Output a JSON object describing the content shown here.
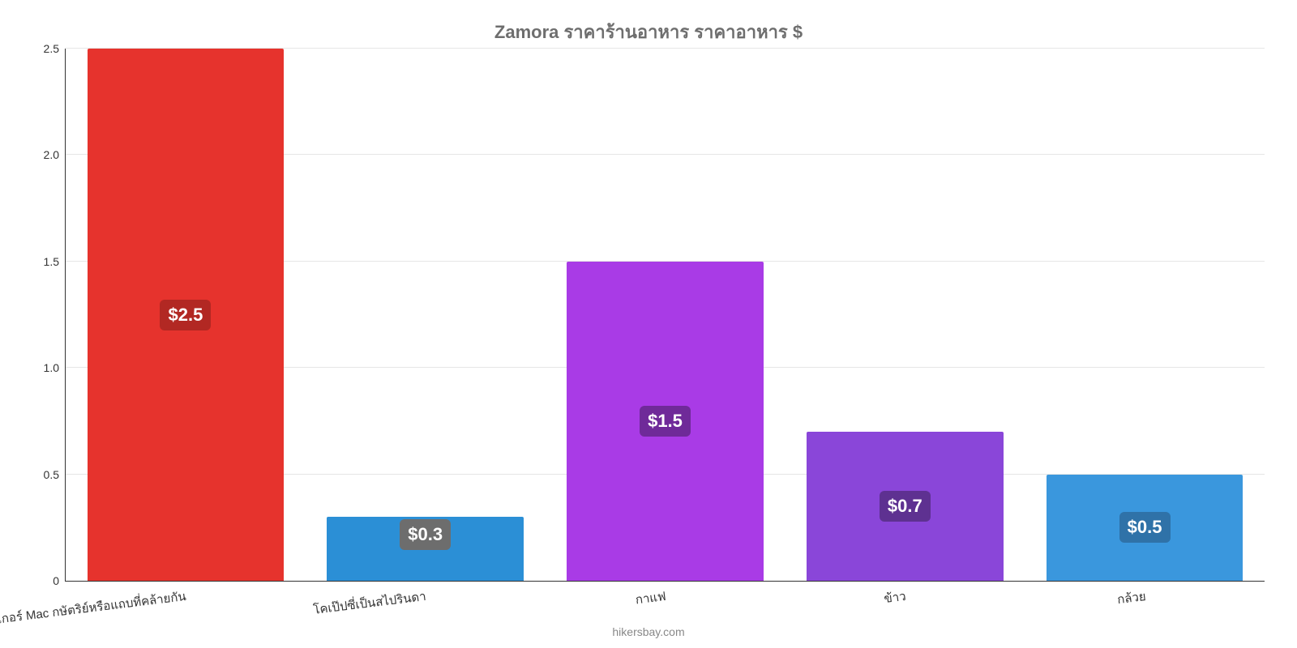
{
  "chart": {
    "type": "bar",
    "title": "Zamora ราคาร้านอาหาร ราคาอาหาร $",
    "title_fontsize": 22,
    "title_color": "#6e6e6e",
    "background_color": "#ffffff",
    "axis_color": "#333333",
    "grid_color": "#e6e6e6",
    "ylim_min": 0,
    "ylim_max": 2.5,
    "y_ticks": [
      {
        "value": 0,
        "label": "0"
      },
      {
        "value": 0.5,
        "label": "0.5"
      },
      {
        "value": 1.0,
        "label": "1.0"
      },
      {
        "value": 1.5,
        "label": "1.5"
      },
      {
        "value": 2.0,
        "label": "2.0"
      },
      {
        "value": 2.5,
        "label": "2.5"
      }
    ],
    "y_tick_fontsize": 14,
    "y_tick_color": "#333333",
    "bar_width_pct": 82,
    "bars": [
      {
        "category": "เบอร์เกอร์ Mac กษัตริย์หรือแถบที่คล้ายกัน",
        "value": 2.5,
        "value_label": "$2.5",
        "bar_color": "#e6332d",
        "badge_bg": "#b22823"
      },
      {
        "category": "โคเป๊ปซี่เป็นสไปรินดา",
        "value": 0.3,
        "value_label": "$0.3",
        "bar_color": "#2b8fd6",
        "badge_bg": "#6d6d6d"
      },
      {
        "category": "กาแฟ",
        "value": 1.5,
        "value_label": "$1.5",
        "bar_color": "#a93be6",
        "badge_bg": "#6f2a99"
      },
      {
        "category": "ข้าว",
        "value": 0.7,
        "value_label": "$0.7",
        "bar_color": "#8a46d9",
        "badge_bg": "#5e3191"
      },
      {
        "category": "กล้วย",
        "value": 0.5,
        "value_label": "$0.5",
        "bar_color": "#3a97dd",
        "badge_bg": "#2f72a8"
      }
    ],
    "x_label_fontsize": 15,
    "x_label_color": "#333333",
    "x_label_rotation_deg": -7,
    "value_label_fontsize": 22,
    "attribution": "hikersbay.com",
    "attribution_fontsize": 14,
    "attribution_color": "#888888"
  }
}
